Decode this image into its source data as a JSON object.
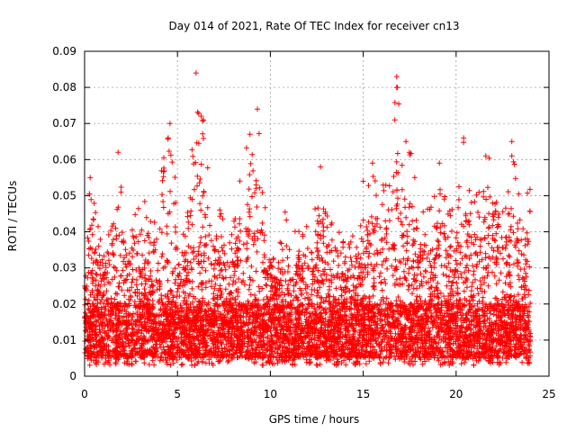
{
  "chart_data": {
    "type": "scatter",
    "title": "Day 014 of 2021, Rate Of TEC Index for receiver cn13",
    "xlabel": "GPS time / hours",
    "ylabel": "ROTI / TECUs",
    "xlim": [
      0,
      25
    ],
    "ylim": [
      0,
      0.09
    ],
    "x_ticks": [
      0,
      5,
      10,
      15,
      20,
      25
    ],
    "y_ticks": [
      0,
      0.01,
      0.02,
      0.03,
      0.04,
      0.05,
      0.06,
      0.07,
      0.08,
      0.09
    ],
    "x_tick_labels": [
      "0",
      "5",
      "10",
      "15",
      "20",
      "25"
    ],
    "y_tick_labels": [
      "0",
      "0.01",
      "0.02",
      "0.03",
      "0.04",
      "0.05",
      "0.06",
      "0.07",
      "0.08",
      "0.09"
    ],
    "grid": true,
    "marker": "+",
    "series_color": "#ff0000",
    "data_range_x": [
      0,
      24
    ],
    "typical_band": [
      0.005,
      0.02
    ],
    "envelope": [
      {
        "x": 0.0,
        "y": 0.03
      },
      {
        "x": 0.3,
        "y": 0.055
      },
      {
        "x": 0.6,
        "y": 0.046
      },
      {
        "x": 1.0,
        "y": 0.033
      },
      {
        "x": 1.4,
        "y": 0.047
      },
      {
        "x": 1.8,
        "y": 0.062
      },
      {
        "x": 2.3,
        "y": 0.04
      },
      {
        "x": 2.8,
        "y": 0.048
      },
      {
        "x": 3.2,
        "y": 0.052
      },
      {
        "x": 3.7,
        "y": 0.05
      },
      {
        "x": 4.2,
        "y": 0.06
      },
      {
        "x": 4.6,
        "y": 0.07
      },
      {
        "x": 5.0,
        "y": 0.048
      },
      {
        "x": 5.5,
        "y": 0.042
      },
      {
        "x": 6.0,
        "y": 0.084
      },
      {
        "x": 6.4,
        "y": 0.071
      },
      {
        "x": 6.9,
        "y": 0.052
      },
      {
        "x": 7.4,
        "y": 0.045
      },
      {
        "x": 7.9,
        "y": 0.04
      },
      {
        "x": 8.5,
        "y": 0.062
      },
      {
        "x": 8.9,
        "y": 0.067
      },
      {
        "x": 9.3,
        "y": 0.074
      },
      {
        "x": 9.8,
        "y": 0.044
      },
      {
        "x": 10.3,
        "y": 0.03
      },
      {
        "x": 10.8,
        "y": 0.046
      },
      {
        "x": 11.3,
        "y": 0.04
      },
      {
        "x": 11.8,
        "y": 0.044
      },
      {
        "x": 12.3,
        "y": 0.045
      },
      {
        "x": 12.7,
        "y": 0.058
      },
      {
        "x": 13.2,
        "y": 0.044
      },
      {
        "x": 13.7,
        "y": 0.04
      },
      {
        "x": 14.2,
        "y": 0.038
      },
      {
        "x": 14.7,
        "y": 0.042
      },
      {
        "x": 15.1,
        "y": 0.054
      },
      {
        "x": 15.5,
        "y": 0.059
      },
      {
        "x": 16.0,
        "y": 0.055
      },
      {
        "x": 16.4,
        "y": 0.06
      },
      {
        "x": 16.8,
        "y": 0.083
      },
      {
        "x": 17.2,
        "y": 0.065
      },
      {
        "x": 17.6,
        "y": 0.063
      },
      {
        "x": 18.1,
        "y": 0.045
      },
      {
        "x": 18.6,
        "y": 0.052
      },
      {
        "x": 19.1,
        "y": 0.06
      },
      {
        "x": 19.5,
        "y": 0.052
      },
      {
        "x": 20.0,
        "y": 0.044
      },
      {
        "x": 20.4,
        "y": 0.066
      },
      {
        "x": 20.9,
        "y": 0.048
      },
      {
        "x": 21.3,
        "y": 0.055
      },
      {
        "x": 21.7,
        "y": 0.062
      },
      {
        "x": 22.2,
        "y": 0.06
      },
      {
        "x": 22.6,
        "y": 0.052
      },
      {
        "x": 23.0,
        "y": 0.065
      },
      {
        "x": 23.5,
        "y": 0.048
      },
      {
        "x": 24.0,
        "y": 0.052
      }
    ],
    "outliers": [
      {
        "x": 6.0,
        "y": 0.084
      },
      {
        "x": 16.8,
        "y": 0.083
      },
      {
        "x": 16.8,
        "y": 0.08
      },
      {
        "x": 9.3,
        "y": 0.074
      },
      {
        "x": 6.4,
        "y": 0.071
      },
      {
        "x": 16.7,
        "y": 0.071
      },
      {
        "x": 4.6,
        "y": 0.07
      },
      {
        "x": 8.9,
        "y": 0.067
      },
      {
        "x": 20.4,
        "y": 0.066
      },
      {
        "x": 4.5,
        "y": 0.066
      },
      {
        "x": 17.3,
        "y": 0.065
      },
      {
        "x": 23.0,
        "y": 0.065
      },
      {
        "x": 1.8,
        "y": 0.062
      },
      {
        "x": 21.6,
        "y": 0.061
      },
      {
        "x": 23.0,
        "y": 0.061
      },
      {
        "x": 19.1,
        "y": 0.059
      },
      {
        "x": 15.5,
        "y": 0.059
      },
      {
        "x": 12.7,
        "y": 0.058
      },
      {
        "x": 0.3,
        "y": 0.055
      },
      {
        "x": 15.0,
        "y": 0.054
      }
    ]
  }
}
